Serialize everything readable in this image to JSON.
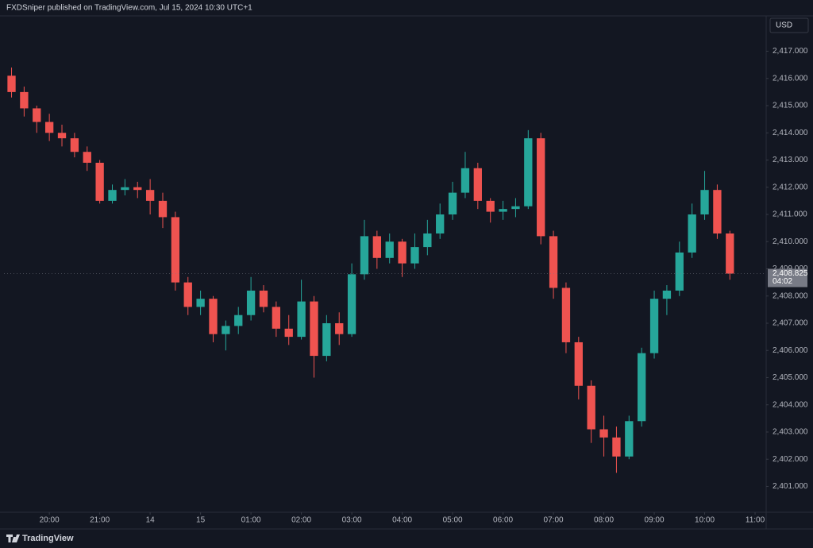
{
  "header": {
    "publisher": "FXDSniper published on TradingView.com, Jul 15, 2024 10:30 UTC+1"
  },
  "footer": {
    "brand": "TradingView"
  },
  "chart_data": {
    "type": "candlestick",
    "currency": "USD",
    "up_color": "#26a69a",
    "down_color": "#ef5350",
    "grid": false,
    "x": [
      0.25,
      0.5,
      0.75,
      1,
      1.25,
      1.5,
      1.75,
      2,
      2.25,
      2.5,
      2.75,
      3,
      3.25,
      3.5,
      3.75,
      4,
      4.25,
      4.5,
      4.75,
      5,
      5.25,
      5.5,
      5.75,
      6,
      6.25,
      6.5,
      6.75,
      7,
      7.25,
      7.5,
      7.75,
      8,
      8.25,
      8.5,
      8.75,
      9,
      9.25,
      9.5,
      9.75,
      10,
      10.25,
      10.5,
      10.75,
      11,
      11.25,
      11.5,
      11.75,
      12,
      12.25,
      12.5,
      12.75,
      13,
      13.25,
      13.5,
      13.75,
      14,
      14.25,
      14.5
    ],
    "open": [
      2416.1,
      2415.5,
      2414.9,
      2414.4,
      2414.0,
      2413.8,
      2413.3,
      2412.9,
      2411.5,
      2411.9,
      2412.0,
      2411.9,
      2411.5,
      2410.9,
      2408.5,
      2407.6,
      2407.9,
      2406.6,
      2406.9,
      2407.3,
      2408.2,
      2407.6,
      2406.8,
      2406.5,
      2407.8,
      2405.8,
      2407.0,
      2406.6,
      2408.8,
      2410.2,
      2409.4,
      2410.0,
      2409.2,
      2409.8,
      2410.3,
      2411.0,
      2411.8,
      2412.7,
      2411.5,
      2411.1,
      2411.2,
      2411.3,
      2413.8,
      2410.2,
      2408.3,
      2406.3,
      2404.7,
      2403.1,
      2402.8,
      2402.1,
      2403.4,
      2405.9,
      2407.9,
      2408.2,
      2409.6,
      2411.0,
      2411.9,
      2410.3
    ],
    "high": [
      2416.4,
      2415.7,
      2415.0,
      2414.7,
      2414.3,
      2414.0,
      2413.5,
      2413.0,
      2412.1,
      2412.3,
      2412.2,
      2412.3,
      2411.8,
      2411.1,
      2408.7,
      2408.2,
      2408.0,
      2407.1,
      2407.6,
      2408.7,
      2408.4,
      2407.8,
      2407.3,
      2408.6,
      2408.0,
      2407.3,
      2407.4,
      2409.2,
      2410.8,
      2410.4,
      2410.3,
      2410.1,
      2410.3,
      2410.8,
      2411.4,
      2412.2,
      2413.3,
      2412.9,
      2411.6,
      2411.5,
      2411.6,
      2414.1,
      2414.0,
      2410.4,
      2408.5,
      2406.5,
      2404.9,
      2403.6,
      2403.2,
      2403.6,
      2406.1,
      2408.2,
      2408.4,
      2410.0,
      2411.4,
      2412.6,
      2412.1,
      2410.4
    ],
    "low": [
      2415.3,
      2414.6,
      2414.0,
      2413.7,
      2413.5,
      2413.1,
      2412.6,
      2411.4,
      2411.4,
      2411.7,
      2411.6,
      2411.0,
      2410.5,
      2408.2,
      2407.3,
      2407.3,
      2406.3,
      2406.0,
      2406.6,
      2407.1,
      2407.4,
      2406.5,
      2406.2,
      2406.4,
      2405.0,
      2405.6,
      2406.2,
      2406.5,
      2408.6,
      2409.0,
      2409.2,
      2408.7,
      2409.0,
      2409.5,
      2410.1,
      2410.8,
      2411.6,
      2411.2,
      2410.7,
      2410.8,
      2410.9,
      2411.2,
      2409.9,
      2407.9,
      2405.9,
      2404.2,
      2402.6,
      2402.1,
      2401.5,
      2402.0,
      2403.2,
      2405.7,
      2407.3,
      2408.0,
      2409.4,
      2410.8,
      2410.1,
      2408.6
    ],
    "close": [
      2415.5,
      2414.9,
      2414.4,
      2414.0,
      2413.8,
      2413.3,
      2412.9,
      2411.5,
      2411.9,
      2412.0,
      2411.9,
      2411.5,
      2410.9,
      2408.5,
      2407.6,
      2407.9,
      2406.6,
      2406.9,
      2407.3,
      2408.2,
      2407.6,
      2406.8,
      2406.5,
      2407.8,
      2405.8,
      2407.0,
      2406.6,
      2408.8,
      2410.2,
      2409.4,
      2410.0,
      2409.2,
      2409.8,
      2410.3,
      2411.0,
      2411.8,
      2412.7,
      2411.5,
      2411.1,
      2411.2,
      2411.3,
      2413.8,
      2410.2,
      2408.3,
      2406.3,
      2404.7,
      2403.1,
      2402.8,
      2402.1,
      2403.4,
      2405.9,
      2407.9,
      2408.2,
      2409.6,
      2411.0,
      2411.9,
      2410.3,
      2408.825
    ],
    "xlim": [
      0.1,
      15.22
    ],
    "ylim": [
      2400.05,
      2418.3
    ],
    "xticks": [
      {
        "value": 1,
        "label": "20:00"
      },
      {
        "value": 2,
        "label": "21:00"
      },
      {
        "value": 3,
        "label": "14"
      },
      {
        "value": 4,
        "label": "15"
      },
      {
        "value": 5,
        "label": "01:00"
      },
      {
        "value": 6,
        "label": "02:00"
      },
      {
        "value": 7,
        "label": "03:00"
      },
      {
        "value": 8,
        "label": "04:00"
      },
      {
        "value": 9,
        "label": "05:00"
      },
      {
        "value": 10,
        "label": "06:00"
      },
      {
        "value": 11,
        "label": "07:00"
      },
      {
        "value": 12,
        "label": "08:00"
      },
      {
        "value": 13,
        "label": "09:00"
      },
      {
        "value": 14,
        "label": "10:00"
      },
      {
        "value": 15,
        "label": "11:00"
      }
    ],
    "yticks": [
      {
        "value": 2401,
        "label": "2,401.000"
      },
      {
        "value": 2402,
        "label": "2,402.000"
      },
      {
        "value": 2403,
        "label": "2,403.000"
      },
      {
        "value": 2404,
        "label": "2,404.000"
      },
      {
        "value": 2405,
        "label": "2,405.000"
      },
      {
        "value": 2406,
        "label": "2,406.000"
      },
      {
        "value": 2407,
        "label": "2,407.000"
      },
      {
        "value": 2408,
        "label": "2,408.000"
      },
      {
        "value": 2409,
        "label": "2,409.000"
      },
      {
        "value": 2410,
        "label": "2,410.000"
      },
      {
        "value": 2411,
        "label": "2,411.000"
      },
      {
        "value": 2412,
        "label": "2,412.000"
      },
      {
        "value": 2413,
        "label": "2,413.000"
      },
      {
        "value": 2414,
        "label": "2,414.000"
      },
      {
        "value": 2415,
        "label": "2,415.000"
      },
      {
        "value": 2416,
        "label": "2,416.000"
      },
      {
        "value": 2417,
        "label": "2,417.000"
      }
    ],
    "last_price": {
      "value": 2408.825,
      "label": "2,408.825"
    },
    "countdown": "04:02"
  }
}
